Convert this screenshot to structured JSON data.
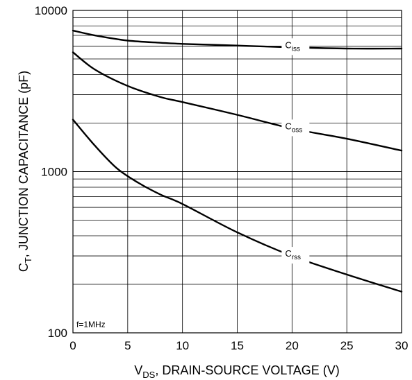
{
  "chart_data": {
    "type": "line",
    "xlabel_main": "V",
    "xlabel_sub": "DS",
    "xlabel_rest": ", DRAIN-SOURCE VOLTAGE (V)",
    "ylabel_main": "C",
    "ylabel_sub": "T",
    "ylabel_rest": ", JUNCTION CAPACITANCE (pF)",
    "x_scale": "linear",
    "y_scale": "log",
    "xlim": [
      0,
      30
    ],
    "ylim": [
      100,
      10000
    ],
    "x_ticks": [
      0,
      5,
      10,
      15,
      20,
      25,
      30
    ],
    "x_tick_labels": [
      "0",
      "5",
      "10",
      "15",
      "20",
      "25",
      "30"
    ],
    "y_tick_labels": [
      "10000",
      "1000",
      "100"
    ],
    "grid": true,
    "annotation": "f=1MHz",
    "series": [
      {
        "name_main": "C",
        "name_sub": "iss",
        "x": [
          0,
          2,
          5,
          8,
          10,
          15,
          20,
          25,
          30
        ],
        "y": [
          7500,
          7000,
          6500,
          6300,
          6200,
          6050,
          5900,
          5800,
          5800
        ]
      },
      {
        "name_main": "C",
        "name_sub": "oss",
        "x": [
          0,
          2,
          5,
          8,
          10,
          15,
          20,
          25,
          30
        ],
        "y": [
          5500,
          4300,
          3400,
          2900,
          2700,
          2250,
          1850,
          1600,
          1350
        ]
      },
      {
        "name_main": "C",
        "name_sub": "rss",
        "x": [
          0,
          2,
          4,
          6,
          8,
          10,
          15,
          20,
          25,
          30
        ],
        "y": [
          2100,
          1450,
          1050,
          850,
          720,
          630,
          420,
          300,
          230,
          180
        ]
      }
    ]
  }
}
